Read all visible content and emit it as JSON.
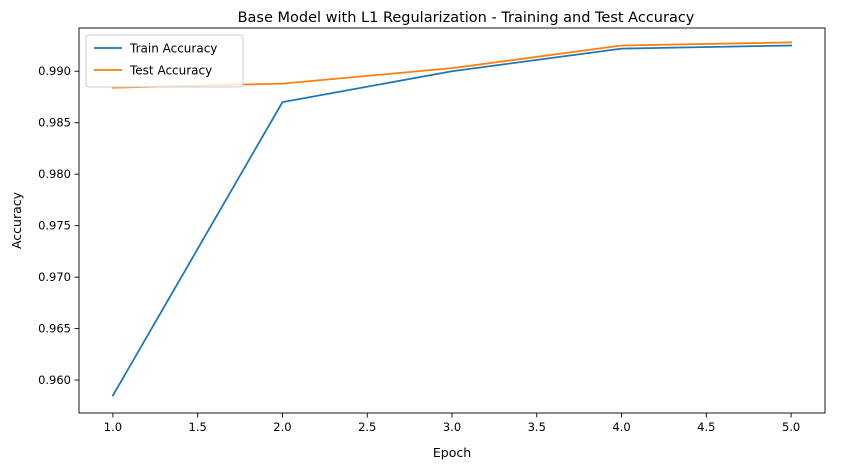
{
  "chart_data": {
    "type": "line",
    "title": "Base Model with L1 Regularization - Training and Test Accuracy",
    "xlabel": "Epoch",
    "ylabel": "Accuracy",
    "x": [
      1,
      2,
      3,
      4,
      5
    ],
    "xlim": [
      0.8,
      5.2
    ],
    "ylim": [
      0.9568,
      0.9942
    ],
    "xticks": [
      1.0,
      1.5,
      2.0,
      2.5,
      3.0,
      3.5,
      4.0,
      4.5,
      5.0
    ],
    "xtick_labels": [
      "1.0",
      "1.5",
      "2.0",
      "2.5",
      "3.0",
      "3.5",
      "4.0",
      "4.5",
      "5.0"
    ],
    "yticks": [
      0.96,
      0.965,
      0.97,
      0.975,
      0.98,
      0.985,
      0.99
    ],
    "ytick_labels": [
      "0.960",
      "0.965",
      "0.970",
      "0.975",
      "0.980",
      "0.985",
      "0.990"
    ],
    "grid": false,
    "legend_position": "top-left",
    "series": [
      {
        "name": "Train Accuracy",
        "color": "#1f77b4",
        "values": [
          0.9585,
          0.987,
          0.99,
          0.9922,
          0.9925
        ]
      },
      {
        "name": "Test Accuracy",
        "color": "#ff7f0e",
        "values": [
          0.9884,
          0.9888,
          0.9903,
          0.9925,
          0.9928
        ]
      }
    ]
  }
}
